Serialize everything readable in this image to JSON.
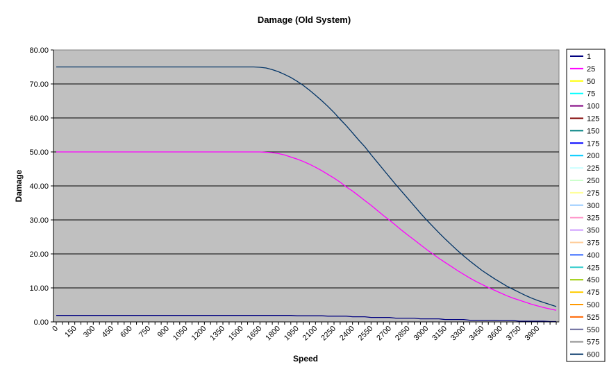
{
  "chart_data": {
    "type": "line",
    "title": "Damage (Old System)",
    "xlabel": "Speed",
    "ylabel": "Damage",
    "ylim": [
      0,
      80
    ],
    "yticks": [
      "0.00",
      "10.00",
      "20.00",
      "30.00",
      "40.00",
      "50.00",
      "60.00",
      "70.00",
      "80.00"
    ],
    "ytick_values": [
      0,
      10,
      20,
      30,
      40,
      50,
      60,
      70,
      80
    ],
    "x_start": 0,
    "x_step": 50,
    "x_end": 4050,
    "xticks": [
      "0",
      "150",
      "300",
      "450",
      "600",
      "750",
      "900",
      "1050",
      "1200",
      "1350",
      "1500",
      "1650",
      "1800",
      "1950",
      "2100",
      "2250",
      "2400",
      "2550",
      "2700",
      "2850",
      "3000",
      "3150",
      "3300",
      "3450",
      "3600",
      "3750",
      "3900"
    ],
    "grid": "horizontal",
    "background": "#c0c0c0",
    "legend_position": "right",
    "legend": [
      {
        "name": "1",
        "color": "#000080"
      },
      {
        "name": "25",
        "color": "#ff00ff"
      },
      {
        "name": "50",
        "color": "#ffff00"
      },
      {
        "name": "75",
        "color": "#00ffff"
      },
      {
        "name": "100",
        "color": "#800080"
      },
      {
        "name": "125",
        "color": "#800000"
      },
      {
        "name": "150",
        "color": "#008080"
      },
      {
        "name": "175",
        "color": "#0000ff"
      },
      {
        "name": "200",
        "color": "#00ccff"
      },
      {
        "name": "225",
        "color": "#ccffff"
      },
      {
        "name": "250",
        "color": "#ccffcc"
      },
      {
        "name": "275",
        "color": "#ffff99"
      },
      {
        "name": "300",
        "color": "#99ccff"
      },
      {
        "name": "325",
        "color": "#ff99cc"
      },
      {
        "name": "350",
        "color": "#cc99ff"
      },
      {
        "name": "375",
        "color": "#ffcc99"
      },
      {
        "name": "400",
        "color": "#3366ff"
      },
      {
        "name": "425",
        "color": "#33cccc"
      },
      {
        "name": "450",
        "color": "#99cc00"
      },
      {
        "name": "475",
        "color": "#ffcc00"
      },
      {
        "name": "500",
        "color": "#ff9900"
      },
      {
        "name": "525",
        "color": "#ff6600"
      },
      {
        "name": "550",
        "color": "#666699"
      },
      {
        "name": "575",
        "color": "#969696"
      },
      {
        "name": "600",
        "color": "#003366"
      }
    ],
    "series": [
      {
        "name": "600",
        "color": "#003366",
        "values": [
          75,
          75,
          75,
          75,
          75,
          75,
          75,
          75,
          75,
          75,
          75,
          75,
          75,
          75,
          75,
          75,
          75,
          75,
          75,
          75,
          75,
          75,
          75,
          75,
          75,
          75,
          75,
          75,
          75,
          75,
          75,
          75,
          75,
          74.9,
          74.7,
          74.2,
          73.6,
          72.8,
          71.9,
          70.8,
          69.6,
          68.2,
          66.7,
          65.1,
          63.4,
          61.6,
          59.6,
          57.7,
          55.6,
          53.5,
          51.5,
          49.2,
          47.0,
          44.8,
          42.6,
          40.4,
          38.3,
          36.2,
          34.1,
          32.0,
          30.0,
          28.1,
          26.2,
          24.4,
          22.7,
          21.0,
          19.4,
          17.9,
          16.5,
          15.1,
          13.9,
          12.7,
          11.6,
          10.5,
          9.6,
          8.7,
          7.8,
          7.0,
          6.3,
          5.7,
          5.1,
          4.5
        ]
      },
      {
        "name": "25",
        "color": "#ff00ff",
        "values": [
          50,
          50,
          50,
          50,
          50,
          50,
          50,
          50,
          50,
          50,
          50,
          50,
          50,
          50,
          50,
          50,
          50,
          50,
          50,
          50,
          50,
          50,
          50,
          50,
          50,
          50,
          50,
          50,
          50,
          50,
          50,
          50,
          50,
          50,
          49.9,
          49.8,
          49.5,
          49.1,
          48.5,
          47.9,
          47.2,
          46.4,
          45.5,
          44.5,
          43.4,
          42.3,
          41.1,
          39.7,
          38.5,
          37.1,
          35.7,
          34.3,
          32.8,
          31.3,
          29.9,
          28.4,
          26.9,
          25.5,
          24.1,
          22.7,
          21.3,
          20.0,
          18.7,
          17.5,
          16.3,
          15.1,
          14.0,
          12.9,
          11.9,
          11.0,
          10.1,
          9.3,
          8.5,
          7.7,
          7.0,
          6.4,
          5.8,
          5.2,
          4.7,
          4.2,
          3.8,
          3.4
        ]
      },
      {
        "name": "1",
        "color": "#000080",
        "values": [
          1.9,
          1.9,
          1.9,
          1.9,
          1.9,
          1.9,
          1.9,
          1.9,
          1.9,
          1.9,
          1.9,
          1.9,
          1.9,
          1.9,
          1.9,
          1.9,
          1.9,
          1.9,
          1.9,
          1.9,
          1.9,
          1.9,
          1.9,
          1.9,
          1.9,
          1.9,
          1.9,
          1.9,
          1.9,
          1.9,
          1.9,
          1.9,
          1.9,
          1.9,
          1.9,
          1.9,
          1.9,
          1.9,
          1.9,
          1.8,
          1.8,
          1.8,
          1.8,
          1.8,
          1.7,
          1.7,
          1.7,
          1.7,
          1.5,
          1.5,
          1.5,
          1.3,
          1.3,
          1.3,
          1.3,
          1.1,
          1.1,
          1.1,
          1.1,
          0.9,
          0.9,
          0.9,
          0.9,
          0.7,
          0.7,
          0.7,
          0.7,
          0.5,
          0.5,
          0.5,
          0.5,
          0.5,
          0.4,
          0.4,
          0.4,
          0.2,
          0.2,
          0.2,
          0.2,
          0.2,
          0.1,
          0.1
        ]
      }
    ]
  }
}
